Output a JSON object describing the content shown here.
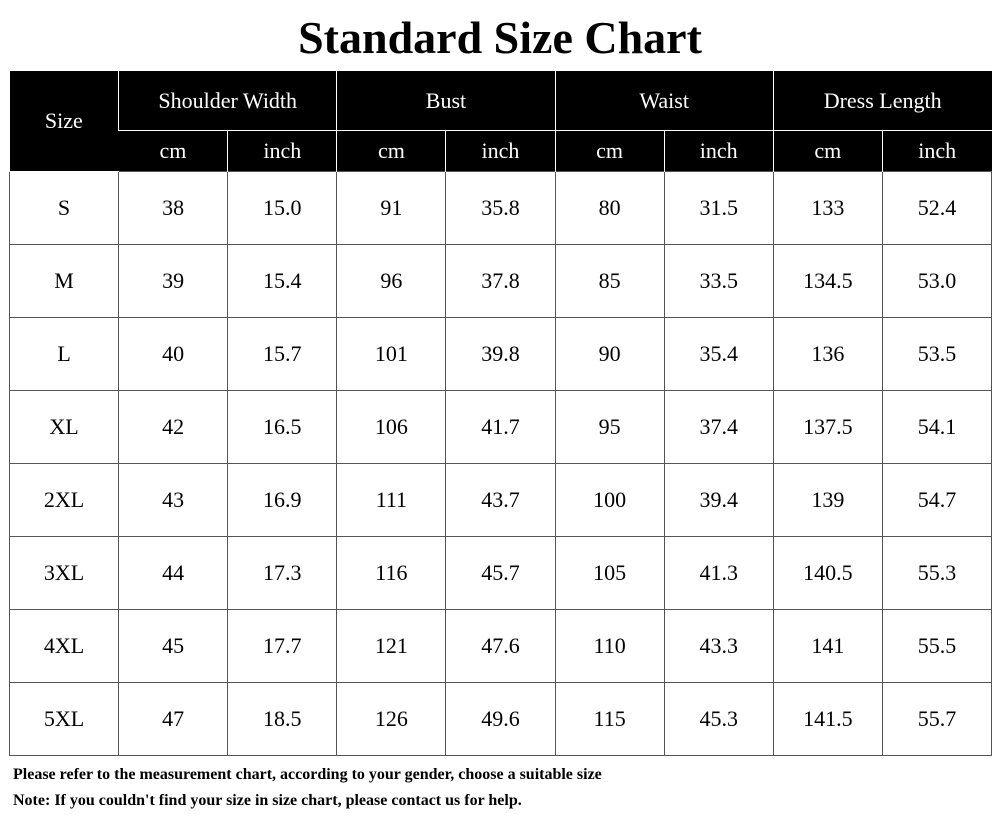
{
  "header": {
    "title": "Standard Size Chart"
  },
  "table": {
    "size_label": "Size",
    "groups": [
      "Shoulder Width",
      "Bust",
      "Waist",
      "Dress Length"
    ],
    "subheaders": [
      "cm",
      "inch",
      "cm",
      "inch",
      "cm",
      "inch",
      "cm",
      "inch"
    ],
    "rows": [
      [
        "S",
        "38",
        "15.0",
        "91",
        "35.8",
        "80",
        "31.5",
        "133",
        "52.4"
      ],
      [
        "M",
        "39",
        "15.4",
        "96",
        "37.8",
        "85",
        "33.5",
        "134.5",
        "53.0"
      ],
      [
        "L",
        "40",
        "15.7",
        "101",
        "39.8",
        "90",
        "35.4",
        "136",
        "53.5"
      ],
      [
        "XL",
        "42",
        "16.5",
        "106",
        "41.7",
        "95",
        "37.4",
        "137.5",
        "54.1"
      ],
      [
        "2XL",
        "43",
        "16.9",
        "111",
        "43.7",
        "100",
        "39.4",
        "139",
        "54.7"
      ],
      [
        "3XL",
        "44",
        "17.3",
        "116",
        "45.7",
        "105",
        "41.3",
        "140.5",
        "55.3"
      ],
      [
        "4XL",
        "45",
        "17.7",
        "121",
        "47.6",
        "110",
        "43.3",
        "141",
        "55.5"
      ],
      [
        "5XL",
        "47",
        "18.5",
        "126",
        "49.6",
        "115",
        "45.3",
        "141.5",
        "55.7"
      ]
    ]
  },
  "notes": [
    "Please refer to the measurement chart, according to your gender, choose a suitable size",
    "Note: If you couldn't find your size in size chart, please contact us for help."
  ]
}
